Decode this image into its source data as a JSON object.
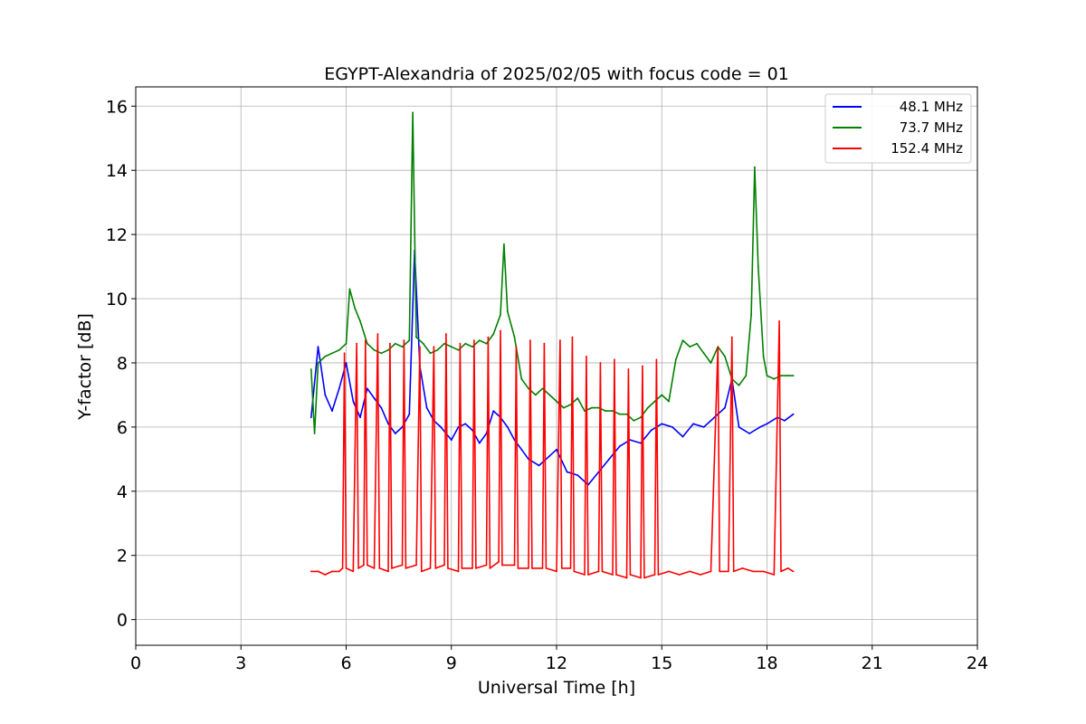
{
  "chart_data": {
    "type": "line",
    "title": "EGYPT-Alexandria of 2025/02/05 with focus code = 01",
    "xlabel": "Universal Time [h]",
    "ylabel": "Y-factor [dB]",
    "xlim": [
      0,
      24
    ],
    "ylim": [
      -0.8,
      16.6
    ],
    "xticks": [
      0,
      3,
      6,
      9,
      12,
      15,
      18,
      21,
      24
    ],
    "xtick_labels": [
      "0",
      "3",
      "6",
      "9",
      "12",
      "15",
      "18",
      "21",
      "24"
    ],
    "yticks": [
      0,
      2,
      4,
      6,
      8,
      10,
      12,
      14,
      16
    ],
    "ytick_labels": [
      "0",
      "2",
      "4",
      "6",
      "8",
      "10",
      "12",
      "14",
      "16"
    ],
    "grid": true,
    "legend_position": "top-right",
    "series": [
      {
        "name": "48.1 MHz",
        "color": "#0000ff",
        "points": [
          [
            5.0,
            6.3
          ],
          [
            5.2,
            8.5
          ],
          [
            5.4,
            7.0
          ],
          [
            5.6,
            6.5
          ],
          [
            5.8,
            7.2
          ],
          [
            6.0,
            8.0
          ],
          [
            6.2,
            6.8
          ],
          [
            6.4,
            6.3
          ],
          [
            6.6,
            7.2
          ],
          [
            6.8,
            6.9
          ],
          [
            7.0,
            6.6
          ],
          [
            7.2,
            6.1
          ],
          [
            7.4,
            5.8
          ],
          [
            7.6,
            6.0
          ],
          [
            7.8,
            6.4
          ],
          [
            7.95,
            11.5
          ],
          [
            8.1,
            7.9
          ],
          [
            8.3,
            6.6
          ],
          [
            8.5,
            6.2
          ],
          [
            8.7,
            6.0
          ],
          [
            9.0,
            5.6
          ],
          [
            9.2,
            6.0
          ],
          [
            9.4,
            6.1
          ],
          [
            9.6,
            5.9
          ],
          [
            9.8,
            5.5
          ],
          [
            10.0,
            5.8
          ],
          [
            10.2,
            6.5
          ],
          [
            10.4,
            6.3
          ],
          [
            10.6,
            6.0
          ],
          [
            10.8,
            5.6
          ],
          [
            11.0,
            5.3
          ],
          [
            11.2,
            5.0
          ],
          [
            11.5,
            4.8
          ],
          [
            11.8,
            5.1
          ],
          [
            12.0,
            5.3
          ],
          [
            12.3,
            4.6
          ],
          [
            12.6,
            4.5
          ],
          [
            12.9,
            4.2
          ],
          [
            13.2,
            4.6
          ],
          [
            13.5,
            5.0
          ],
          [
            13.8,
            5.4
          ],
          [
            14.1,
            5.6
          ],
          [
            14.4,
            5.5
          ],
          [
            14.7,
            5.9
          ],
          [
            15.0,
            6.1
          ],
          [
            15.3,
            6.0
          ],
          [
            15.6,
            5.7
          ],
          [
            15.9,
            6.1
          ],
          [
            16.2,
            6.0
          ],
          [
            16.5,
            6.3
          ],
          [
            16.8,
            6.6
          ],
          [
            17.0,
            7.5
          ],
          [
            17.2,
            6.0
          ],
          [
            17.5,
            5.8
          ],
          [
            17.8,
            6.0
          ],
          [
            18.0,
            6.1
          ],
          [
            18.3,
            6.3
          ],
          [
            18.5,
            6.2
          ],
          [
            18.75,
            6.4
          ]
        ]
      },
      {
        "name": "73.7 MHz",
        "color": "#008000",
        "points": [
          [
            5.0,
            7.8
          ],
          [
            5.1,
            5.8
          ],
          [
            5.2,
            8.0
          ],
          [
            5.4,
            8.2
          ],
          [
            5.6,
            8.3
          ],
          [
            5.8,
            8.4
          ],
          [
            6.0,
            8.6
          ],
          [
            6.1,
            10.3
          ],
          [
            6.25,
            9.7
          ],
          [
            6.4,
            9.3
          ],
          [
            6.6,
            8.6
          ],
          [
            6.8,
            8.4
          ],
          [
            7.0,
            8.3
          ],
          [
            7.2,
            8.4
          ],
          [
            7.4,
            8.6
          ],
          [
            7.6,
            8.5
          ],
          [
            7.8,
            8.7
          ],
          [
            7.9,
            15.8
          ],
          [
            8.0,
            8.8
          ],
          [
            8.2,
            8.6
          ],
          [
            8.4,
            8.3
          ],
          [
            8.6,
            8.4
          ],
          [
            8.8,
            8.6
          ],
          [
            9.0,
            8.5
          ],
          [
            9.2,
            8.4
          ],
          [
            9.4,
            8.6
          ],
          [
            9.6,
            8.5
          ],
          [
            9.8,
            8.7
          ],
          [
            10.0,
            8.6
          ],
          [
            10.2,
            8.9
          ],
          [
            10.4,
            9.5
          ],
          [
            10.5,
            11.7
          ],
          [
            10.6,
            9.6
          ],
          [
            10.8,
            8.8
          ],
          [
            11.0,
            7.5
          ],
          [
            11.2,
            7.2
          ],
          [
            11.4,
            7.0
          ],
          [
            11.6,
            7.2
          ],
          [
            11.8,
            7.0
          ],
          [
            12.0,
            6.8
          ],
          [
            12.2,
            6.6
          ],
          [
            12.4,
            6.7
          ],
          [
            12.6,
            6.9
          ],
          [
            12.8,
            6.5
          ],
          [
            13.0,
            6.6
          ],
          [
            13.2,
            6.6
          ],
          [
            13.4,
            6.5
          ],
          [
            13.6,
            6.5
          ],
          [
            13.8,
            6.4
          ],
          [
            14.0,
            6.4
          ],
          [
            14.2,
            6.2
          ],
          [
            14.4,
            6.3
          ],
          [
            14.6,
            6.6
          ],
          [
            14.8,
            6.8
          ],
          [
            15.0,
            7.0
          ],
          [
            15.2,
            6.8
          ],
          [
            15.4,
            8.1
          ],
          [
            15.6,
            8.7
          ],
          [
            15.8,
            8.5
          ],
          [
            16.0,
            8.6
          ],
          [
            16.2,
            8.3
          ],
          [
            16.4,
            8.0
          ],
          [
            16.6,
            8.5
          ],
          [
            16.8,
            8.2
          ],
          [
            17.0,
            7.5
          ],
          [
            17.2,
            7.3
          ],
          [
            17.4,
            7.6
          ],
          [
            17.55,
            9.5
          ],
          [
            17.65,
            14.1
          ],
          [
            17.75,
            11.0
          ],
          [
            17.9,
            8.2
          ],
          [
            18.0,
            7.6
          ],
          [
            18.2,
            7.5
          ],
          [
            18.4,
            7.6
          ],
          [
            18.6,
            7.6
          ],
          [
            18.75,
            7.6
          ]
        ]
      },
      {
        "name": "152.4 MHz",
        "color": "#ff0000",
        "points": [
          [
            5.0,
            1.5
          ],
          [
            5.2,
            1.5
          ],
          [
            5.4,
            1.4
          ],
          [
            5.6,
            1.5
          ],
          [
            5.8,
            1.5
          ],
          [
            5.9,
            1.6
          ],
          [
            5.95,
            8.3
          ],
          [
            6.0,
            1.6
          ],
          [
            6.2,
            1.5
          ],
          [
            6.3,
            8.6
          ],
          [
            6.35,
            1.6
          ],
          [
            6.5,
            1.7
          ],
          [
            6.55,
            8.7
          ],
          [
            6.6,
            1.7
          ],
          [
            6.8,
            1.6
          ],
          [
            6.9,
            8.9
          ],
          [
            6.95,
            1.6
          ],
          [
            7.2,
            1.5
          ],
          [
            7.25,
            8.6
          ],
          [
            7.3,
            1.6
          ],
          [
            7.6,
            1.7
          ],
          [
            7.65,
            8.7
          ],
          [
            7.7,
            1.6
          ],
          [
            8.0,
            1.7
          ],
          [
            8.1,
            8.5
          ],
          [
            8.15,
            1.5
          ],
          [
            8.4,
            1.6
          ],
          [
            8.5,
            8.5
          ],
          [
            8.55,
            1.6
          ],
          [
            8.8,
            1.7
          ],
          [
            8.85,
            8.9
          ],
          [
            8.9,
            1.6
          ],
          [
            9.2,
            1.5
          ],
          [
            9.25,
            8.6
          ],
          [
            9.3,
            1.6
          ],
          [
            9.6,
            1.6
          ],
          [
            9.65,
            8.7
          ],
          [
            9.7,
            1.6
          ],
          [
            10.0,
            1.7
          ],
          [
            10.05,
            8.8
          ],
          [
            10.1,
            1.6
          ],
          [
            10.35,
            1.8
          ],
          [
            10.4,
            9.0
          ],
          [
            10.45,
            1.7
          ],
          [
            10.8,
            1.7
          ],
          [
            10.85,
            8.5
          ],
          [
            10.9,
            1.6
          ],
          [
            11.2,
            1.6
          ],
          [
            11.25,
            8.7
          ],
          [
            11.3,
            1.6
          ],
          [
            11.6,
            1.6
          ],
          [
            11.65,
            8.6
          ],
          [
            11.7,
            1.6
          ],
          [
            12.0,
            1.5
          ],
          [
            12.1,
            8.7
          ],
          [
            12.15,
            1.6
          ],
          [
            12.4,
            1.6
          ],
          [
            12.45,
            8.8
          ],
          [
            12.5,
            1.5
          ],
          [
            12.8,
            1.4
          ],
          [
            12.85,
            8.2
          ],
          [
            12.9,
            1.4
          ],
          [
            13.2,
            1.5
          ],
          [
            13.25,
            8.0
          ],
          [
            13.3,
            1.5
          ],
          [
            13.6,
            1.4
          ],
          [
            13.65,
            8.1
          ],
          [
            13.7,
            1.4
          ],
          [
            14.0,
            1.3
          ],
          [
            14.05,
            7.8
          ],
          [
            14.1,
            1.4
          ],
          [
            14.4,
            1.3
          ],
          [
            14.45,
            7.9
          ],
          [
            14.5,
            1.3
          ],
          [
            14.8,
            1.4
          ],
          [
            14.85,
            8.1
          ],
          [
            14.9,
            1.4
          ],
          [
            15.2,
            1.5
          ],
          [
            15.5,
            1.4
          ],
          [
            15.8,
            1.5
          ],
          [
            16.1,
            1.4
          ],
          [
            16.4,
            1.5
          ],
          [
            16.6,
            8.5
          ],
          [
            16.65,
            1.5
          ],
          [
            16.9,
            1.5
          ],
          [
            17.0,
            8.8
          ],
          [
            17.05,
            1.5
          ],
          [
            17.3,
            1.6
          ],
          [
            17.6,
            1.5
          ],
          [
            17.9,
            1.5
          ],
          [
            18.2,
            1.4
          ],
          [
            18.35,
            9.3
          ],
          [
            18.4,
            1.5
          ],
          [
            18.6,
            1.6
          ],
          [
            18.75,
            1.5
          ]
        ]
      }
    ]
  }
}
